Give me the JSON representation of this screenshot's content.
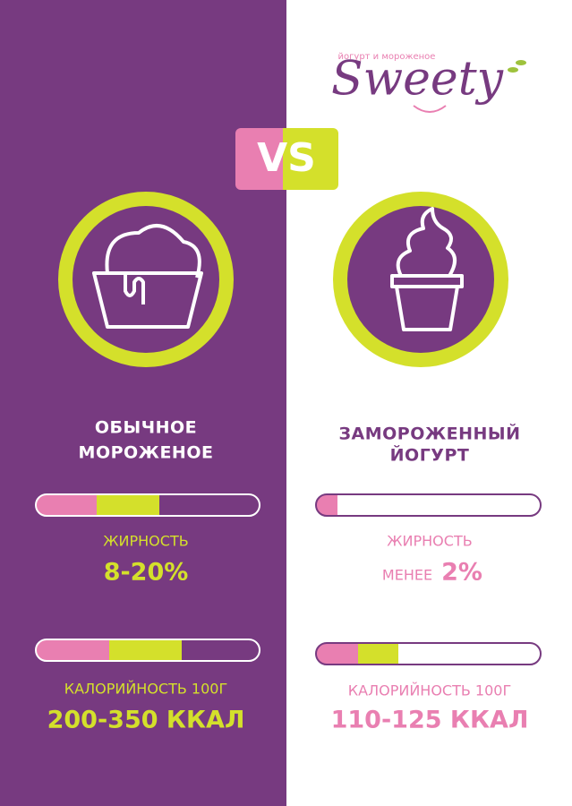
{
  "logo": {
    "name": "Sweety",
    "tagline": "йогурт и мороженое"
  },
  "versus": "VS",
  "left": {
    "title_lines": [
      "ОБЫЧНОЕ",
      "МОРОЖЕНОЕ"
    ],
    "fat_label": "ЖИРНОСТЬ",
    "fat_value": "8-20%",
    "calorie_label": "КАЛОРИЙНОСТЬ 100Г",
    "calorie_value": "200-350 ККАЛ"
  },
  "right": {
    "title_lines": [
      "ЗАМОРОЖЕННЫЙ",
      "ЙОГУРТ"
    ],
    "fat_label": "ЖИРНОСТЬ",
    "fat_prefix": "МЕНЕЕ",
    "fat_value": "2%",
    "calorie_label": "КАЛОРИЙНОСТЬ 100Г",
    "calorie_value": "110-125 ККАЛ"
  }
}
